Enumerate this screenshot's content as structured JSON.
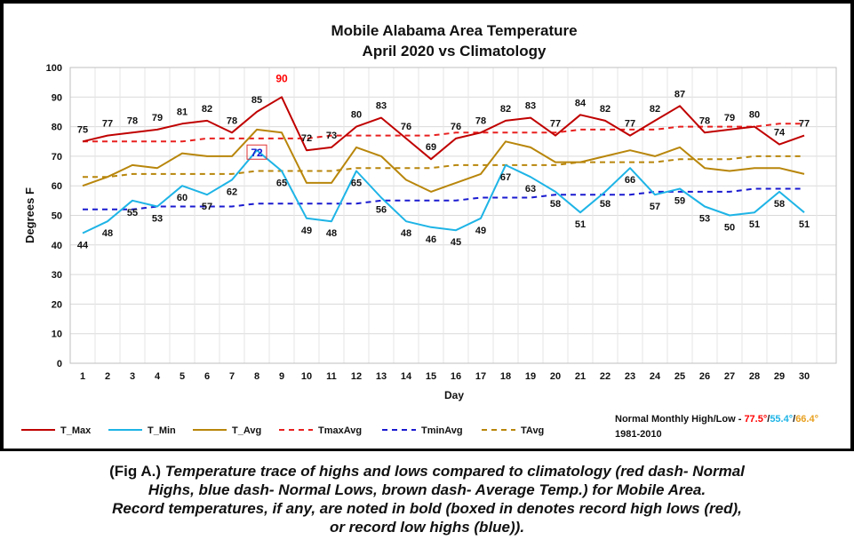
{
  "chart_data": {
    "type": "line",
    "title": "Mobile Alabama Area Temperature",
    "subtitle": "April 2020 vs Climatology",
    "xlabel": "Day",
    "ylabel": "Degrees F",
    "ylim": [
      0,
      100
    ],
    "yticks": [
      0,
      10,
      20,
      30,
      40,
      50,
      60,
      70,
      80,
      90,
      100
    ],
    "grid": true,
    "legend_position": "bottom",
    "x": [
      1,
      2,
      3,
      4,
      5,
      6,
      7,
      8,
      9,
      10,
      11,
      12,
      13,
      14,
      15,
      16,
      17,
      18,
      19,
      20,
      21,
      22,
      23,
      24,
      25,
      26,
      27,
      28,
      29,
      30
    ],
    "series": [
      {
        "name": "T_Max",
        "color": "#C00000",
        "dash": false,
        "labels": true,
        "label_pos": "above",
        "values": [
          75,
          77,
          78,
          79,
          81,
          82,
          78,
          85,
          90,
          72,
          73,
          80,
          83,
          76,
          69,
          76,
          78,
          82,
          83,
          77,
          84,
          82,
          77,
          82,
          87,
          78,
          79,
          80,
          74,
          77
        ]
      },
      {
        "name": "T_Min",
        "color": "#1EB4E6",
        "dash": false,
        "labels": true,
        "label_pos": "below",
        "values": [
          44,
          48,
          55,
          53,
          60,
          57,
          62,
          72,
          65,
          49,
          48,
          65,
          56,
          48,
          46,
          45,
          49,
          67,
          63,
          58,
          51,
          58,
          66,
          57,
          59,
          53,
          50,
          51,
          58,
          51
        ]
      },
      {
        "name": "T_Avg",
        "color": "#B8860B",
        "dash": false,
        "labels": false,
        "values": [
          60,
          63,
          67,
          66,
          71,
          70,
          70,
          79,
          78,
          61,
          61,
          73,
          70,
          62,
          58,
          61,
          64,
          75,
          73,
          68,
          68,
          70,
          72,
          70,
          73,
          66,
          65,
          66,
          66,
          64
        ]
      },
      {
        "name": "TmaxAvg",
        "color": "#E8201F",
        "dash": true,
        "labels": false,
        "values": [
          75,
          75,
          75,
          75,
          75,
          76,
          76,
          76,
          76,
          76,
          77,
          77,
          77,
          77,
          77,
          78,
          78,
          78,
          78,
          78,
          79,
          79,
          79,
          79,
          80,
          80,
          80,
          80,
          81,
          81
        ]
      },
      {
        "name": "TminAvg",
        "color": "#1A1AD0",
        "dash": true,
        "labels": false,
        "values": [
          52,
          52,
          52,
          53,
          53,
          53,
          53,
          54,
          54,
          54,
          54,
          54,
          55,
          55,
          55,
          55,
          56,
          56,
          56,
          57,
          57,
          57,
          57,
          58,
          58,
          58,
          58,
          59,
          59,
          59
        ]
      },
      {
        "name": "TAvg",
        "color": "#B8860B",
        "dash": true,
        "labels": false,
        "values": [
          63,
          63,
          64,
          64,
          64,
          64,
          64,
          65,
          65,
          65,
          65,
          66,
          66,
          66,
          66,
          67,
          67,
          67,
          67,
          67,
          68,
          68,
          68,
          68,
          69,
          69,
          69,
          70,
          70,
          70
        ]
      }
    ],
    "record_highlights": [
      {
        "day": 9,
        "value": 90,
        "series": "T_Max",
        "color": "#FF0000",
        "boxed": false
      },
      {
        "day": 8,
        "value": 72,
        "series": "T_Min",
        "color": "#1A1AD0",
        "boxed": true,
        "box_color": "#E03030"
      }
    ],
    "normals_note": {
      "prefix": "Normal Monthly High/Low - ",
      "high": "77.5°",
      "sep1": "/",
      "low": "55.4°",
      "sep2": "/",
      "avg": "66.4°",
      "period": "1981-2010",
      "high_color": "#FF0000",
      "low_color": "#1EB4E6",
      "avg_color": "#E8A020"
    }
  },
  "caption": {
    "line1_bold": "(Fig A.) ",
    "line1_italic": "Temperature trace of highs and lows compared to climatology (red dash- Normal",
    "line2": "Highs, blue dash- Normal Lows, brown dash- Average Temp.) for Mobile Area.",
    "line3": "Record temperatures, if any, are noted in bold (boxed in denotes record high lows (red),",
    "line4": "or record low highs (blue))."
  }
}
